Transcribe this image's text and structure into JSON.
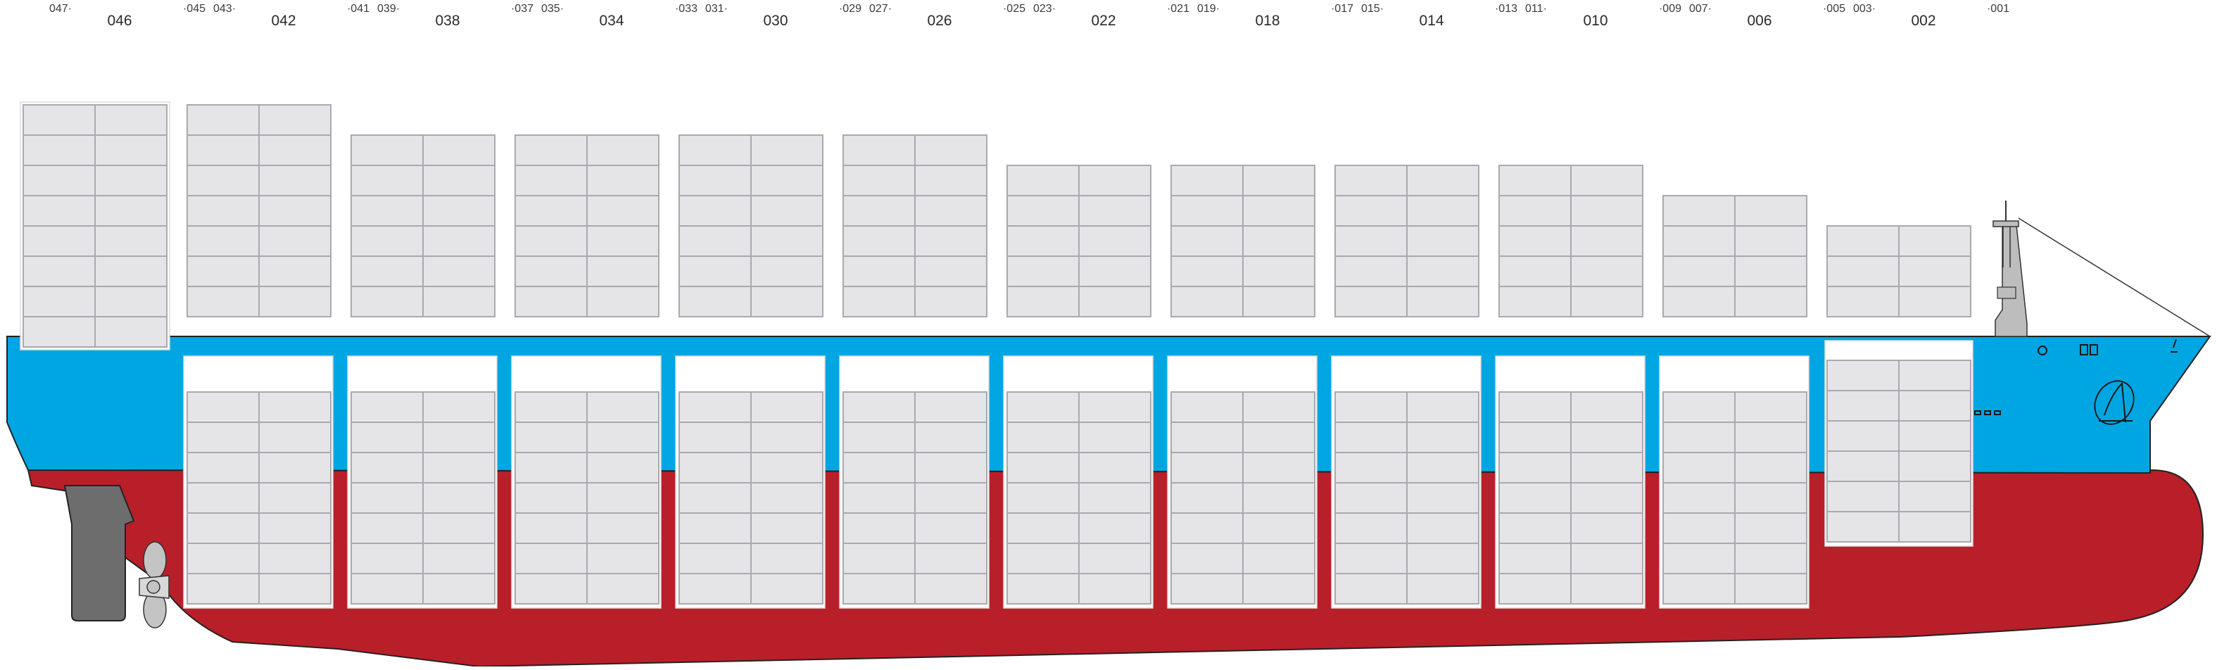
{
  "colors": {
    "hull_upper": "#00a6e2",
    "hull_lower": "#b91f28",
    "container_fill": "#e5e5e8",
    "container_stroke": "#a9a9ae",
    "hold_fill": "#ffffff",
    "rudder": "#6d6d6d",
    "propeller": "#c4c4c4",
    "mast": "#bdbdbd"
  },
  "bays": [
    {
      "main": "046",
      "aft": "047",
      "fwd": "045",
      "deck_tiers": 8,
      "hold_tiers": 0
    },
    {
      "main": "042",
      "aft": "043",
      "fwd": "041",
      "deck_tiers": 7,
      "hold_tiers": 7
    },
    {
      "main": "038",
      "aft": "039",
      "fwd": "037",
      "deck_tiers": 6,
      "hold_tiers": 7
    },
    {
      "main": "034",
      "aft": "035",
      "fwd": "033",
      "deck_tiers": 6,
      "hold_tiers": 7
    },
    {
      "main": "030",
      "aft": "031",
      "fwd": "029",
      "deck_tiers": 6,
      "hold_tiers": 7
    },
    {
      "main": "026",
      "aft": "027",
      "fwd": "025",
      "deck_tiers": 6,
      "hold_tiers": 7
    },
    {
      "main": "022",
      "aft": "023",
      "fwd": "021",
      "deck_tiers": 5,
      "hold_tiers": 7
    },
    {
      "main": "018",
      "aft": "019",
      "fwd": "017",
      "deck_tiers": 5,
      "hold_tiers": 7
    },
    {
      "main": "014",
      "aft": "015",
      "fwd": "013",
      "deck_tiers": 5,
      "hold_tiers": 7
    },
    {
      "main": "010",
      "aft": "011",
      "fwd": "009",
      "deck_tiers": 5,
      "hold_tiers": 7
    },
    {
      "main": "006",
      "aft": "007",
      "fwd": "005",
      "deck_tiers": 4,
      "hold_tiers": 7
    },
    {
      "main": "002",
      "aft": "003",
      "fwd": "001",
      "deck_tiers": 3,
      "hold_tiers": 6
    }
  ]
}
